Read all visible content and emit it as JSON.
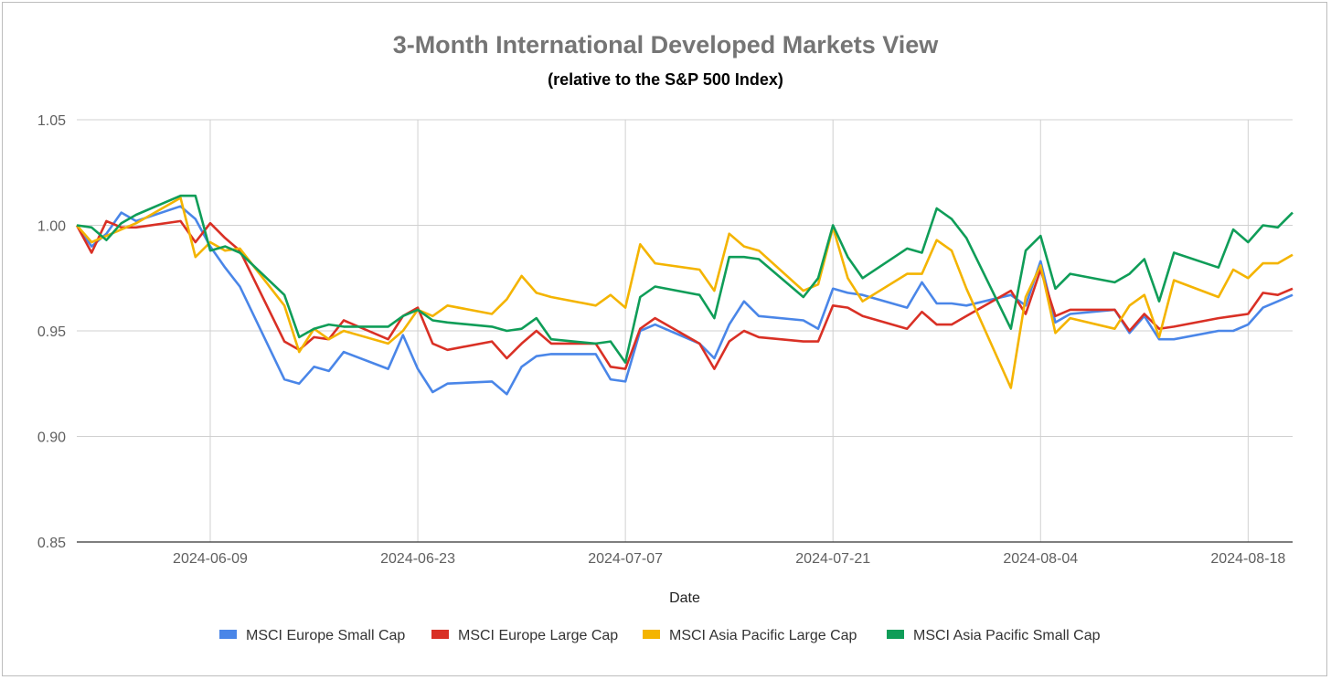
{
  "chart_data": {
    "type": "line",
    "title": "3-Month International Developed Markets View",
    "subtitle": "(relative to the S&P 500 Index)",
    "xlabel": "Date",
    "ylabel": "",
    "ylim": [
      0.85,
      1.05
    ],
    "yticks": [
      0.85,
      0.9,
      0.95,
      1.0,
      1.05
    ],
    "ytick_labels": [
      "0.85",
      "0.90",
      "0.95",
      "1.00",
      "1.05"
    ],
    "x_range_days": [
      0,
      82
    ],
    "xticks": [
      {
        "day": 9,
        "label": "2024-06-09"
      },
      {
        "day": 23,
        "label": "2024-06-23"
      },
      {
        "day": 37,
        "label": "2024-07-07"
      },
      {
        "day": 51,
        "label": "2024-07-21"
      },
      {
        "day": 65,
        "label": "2024-08-04"
      },
      {
        "day": 79,
        "label": "2024-08-18"
      }
    ],
    "x_days": [
      0,
      1,
      2,
      3,
      4,
      7,
      8,
      9,
      10,
      11,
      14,
      15,
      16,
      17,
      18,
      21,
      22,
      23,
      24,
      25,
      28,
      29,
      30,
      31,
      32,
      35,
      36,
      37,
      38,
      39,
      42,
      43,
      44,
      45,
      46,
      49,
      50,
      51,
      52,
      53,
      56,
      57,
      58,
      59,
      60,
      63,
      64,
      65,
      66,
      67,
      70,
      71,
      72,
      73,
      74,
      77,
      78,
      79,
      80,
      81,
      82
    ],
    "series": [
      {
        "name": "MSCI Europe Small Cap",
        "color": "#4a86e8",
        "values": [
          1.0,
          0.99,
          0.996,
          1.006,
          1.002,
          1.009,
          1.003,
          0.99,
          0.98,
          0.971,
          0.927,
          0.925,
          0.933,
          0.931,
          0.94,
          0.932,
          0.948,
          0.932,
          0.921,
          0.925,
          0.926,
          0.92,
          0.933,
          0.938,
          0.939,
          0.939,
          0.927,
          0.926,
          0.95,
          0.953,
          0.944,
          0.937,
          0.953,
          0.964,
          0.957,
          0.955,
          0.951,
          0.97,
          0.968,
          0.967,
          0.961,
          0.973,
          0.963,
          0.963,
          0.962,
          0.967,
          0.962,
          0.983,
          0.954,
          0.958,
          0.96,
          0.949,
          0.957,
          0.946,
          0.946,
          0.95,
          0.95,
          0.953,
          0.961,
          0.964,
          0.967
        ]
      },
      {
        "name": "MSCI Europe Large Cap",
        "color": "#d93025",
        "values": [
          1.0,
          0.987,
          1.002,
          0.999,
          0.999,
          1.002,
          0.992,
          1.001,
          0.994,
          0.988,
          0.945,
          0.941,
          0.947,
          0.946,
          0.955,
          0.946,
          0.957,
          0.961,
          0.944,
          0.941,
          0.945,
          0.937,
          0.944,
          0.95,
          0.944,
          0.944,
          0.933,
          0.932,
          0.951,
          0.956,
          0.944,
          0.932,
          0.945,
          0.95,
          0.947,
          0.945,
          0.945,
          0.962,
          0.961,
          0.957,
          0.951,
          0.959,
          0.953,
          0.953,
          0.957,
          0.969,
          0.958,
          0.979,
          0.957,
          0.96,
          0.96,
          0.95,
          0.958,
          0.951,
          0.952,
          0.956,
          0.957,
          0.958,
          0.968,
          0.967,
          0.97
        ]
      },
      {
        "name": "MSCI Asia Pacific Large Cap",
        "color": "#f4b400",
        "values": [
          1.0,
          0.992,
          0.995,
          0.998,
          1.001,
          1.013,
          0.985,
          0.992,
          0.988,
          0.989,
          0.962,
          0.94,
          0.951,
          0.946,
          0.95,
          0.944,
          0.95,
          0.96,
          0.957,
          0.962,
          0.958,
          0.965,
          0.976,
          0.968,
          0.966,
          0.962,
          0.967,
          0.961,
          0.991,
          0.982,
          0.979,
          0.969,
          0.996,
          0.99,
          0.988,
          0.969,
          0.972,
          0.999,
          0.975,
          0.964,
          0.977,
          0.977,
          0.993,
          0.988,
          0.97,
          0.923,
          0.966,
          0.981,
          0.949,
          0.956,
          0.951,
          0.962,
          0.967,
          0.947,
          0.974,
          0.966,
          0.979,
          0.975,
          0.982,
          0.982,
          0.986
        ]
      },
      {
        "name": "MSCI Asia Pacific Small Cap",
        "color": "#0f9d58",
        "values": [
          1.0,
          0.999,
          0.993,
          1.001,
          1.005,
          1.014,
          1.014,
          0.988,
          0.99,
          0.987,
          0.967,
          0.947,
          0.951,
          0.953,
          0.952,
          0.952,
          0.957,
          0.96,
          0.955,
          0.954,
          0.952,
          0.95,
          0.951,
          0.956,
          0.946,
          0.944,
          0.945,
          0.935,
          0.966,
          0.971,
          0.967,
          0.956,
          0.985,
          0.985,
          0.984,
          0.966,
          0.975,
          1.0,
          0.985,
          0.975,
          0.989,
          0.987,
          1.008,
          1.003,
          0.994,
          0.951,
          0.988,
          0.995,
          0.97,
          0.977,
          0.973,
          0.977,
          0.984,
          0.964,
          0.987,
          0.98,
          0.998,
          0.992,
          1.0,
          0.999,
          1.006
        ]
      }
    ],
    "legend_position": "bottom",
    "grid": true
  }
}
